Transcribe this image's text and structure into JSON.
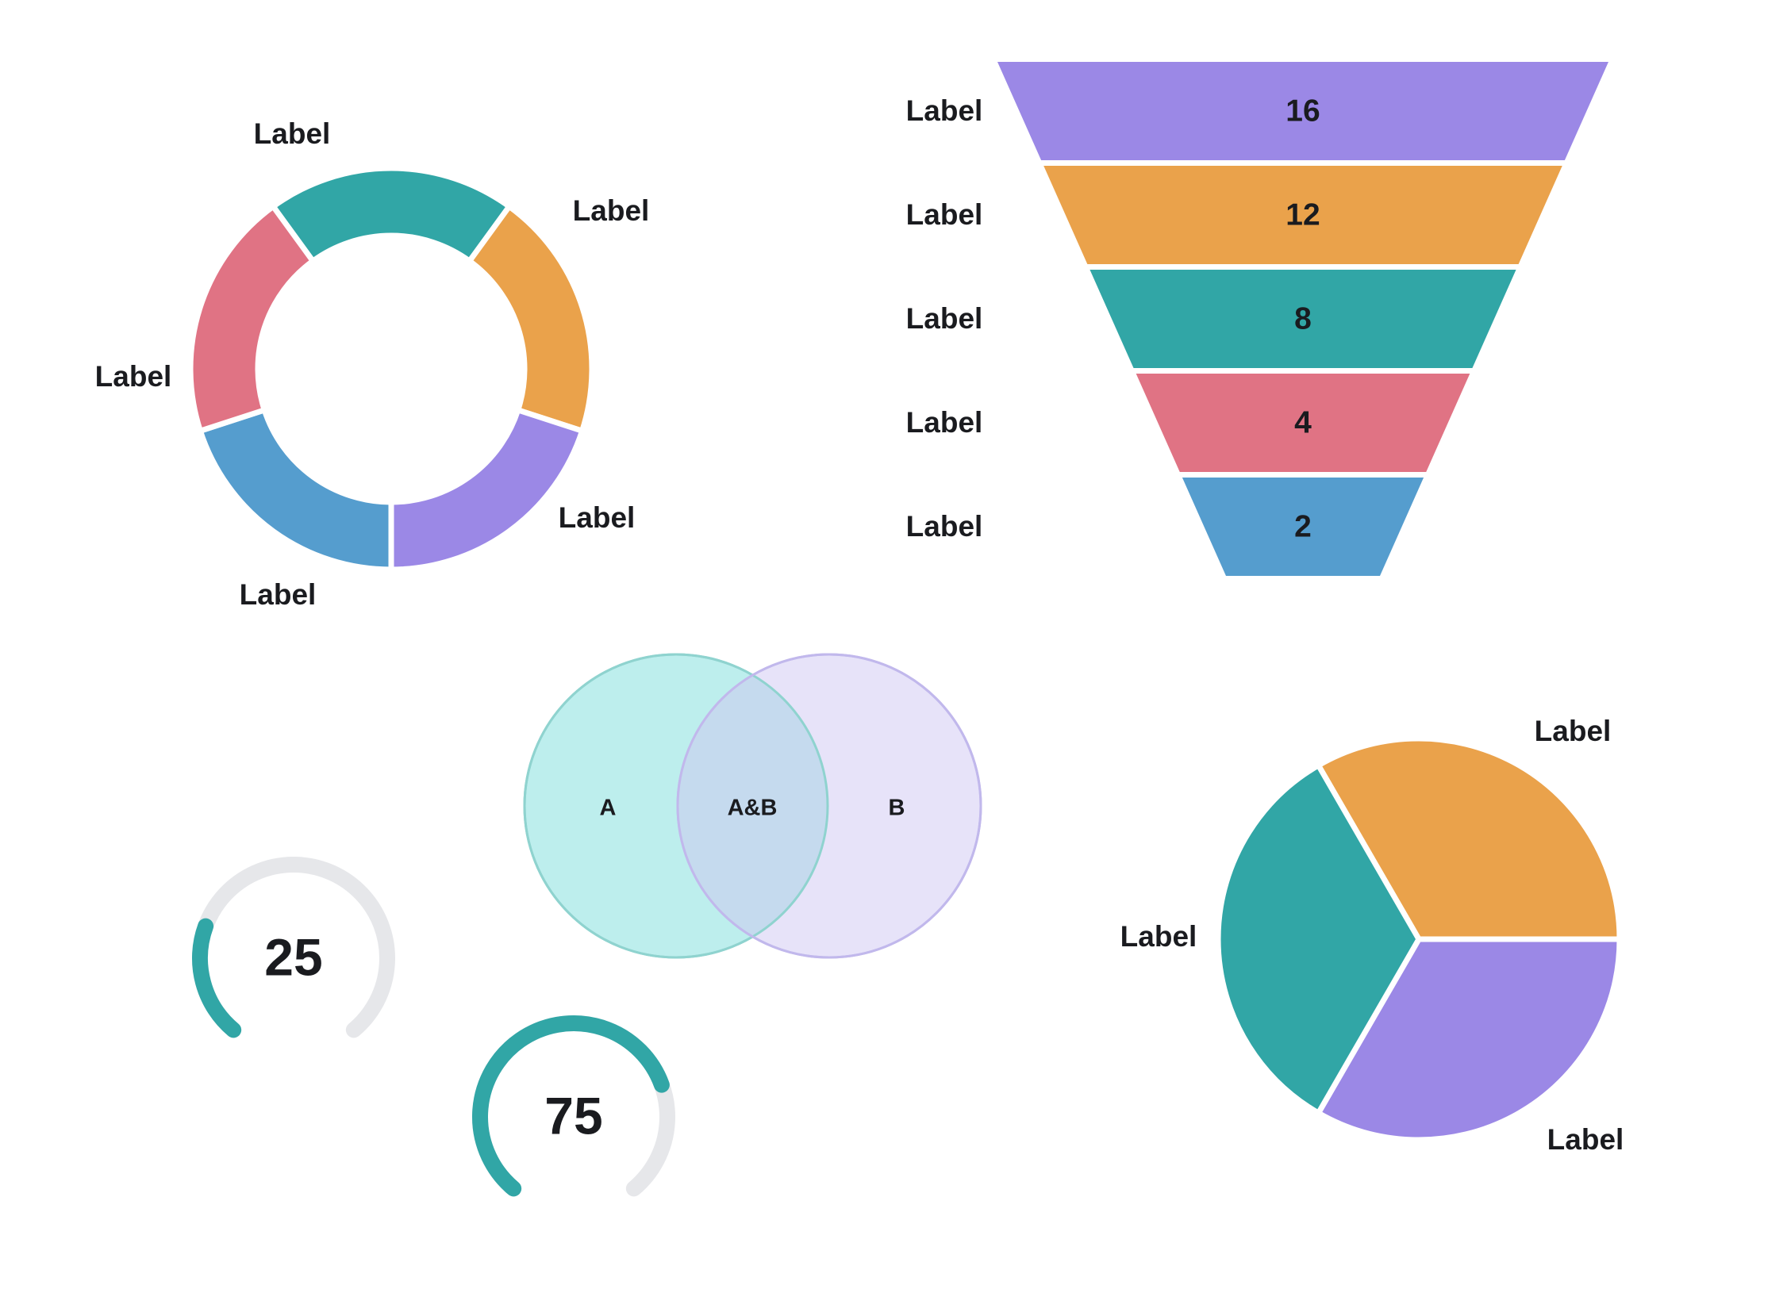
{
  "chart_data": [
    {
      "type": "donut",
      "segments": [
        {
          "label": "Label",
          "value": 1,
          "color": "#31a6a6"
        },
        {
          "label": "Label",
          "value": 1,
          "color": "#eaa24b"
        },
        {
          "label": "Label",
          "value": 1,
          "color": "#9b88e6"
        },
        {
          "label": "Label",
          "value": 1,
          "color": "#559dce"
        },
        {
          "label": "Label",
          "value": 1,
          "color": "#e07384"
        }
      ]
    },
    {
      "type": "funnel",
      "stages": [
        {
          "label": "Label",
          "value": 16,
          "color": "#9b88e6"
        },
        {
          "label": "Label",
          "value": 12,
          "color": "#eaa24b"
        },
        {
          "label": "Label",
          "value": 8,
          "color": "#31a6a6"
        },
        {
          "label": "Label",
          "value": 4,
          "color": "#e07384"
        },
        {
          "label": "Label",
          "value": 2,
          "color": "#559dce"
        }
      ]
    },
    {
      "type": "venn",
      "sets": [
        {
          "label": "A",
          "fill": "#bdeeed",
          "stroke": "#8fd3cf"
        },
        {
          "label": "B",
          "fill": "#e7e3f9",
          "stroke": "#c1b8ec"
        }
      ],
      "intersection": {
        "label": "A&B",
        "fill": "#c5daee"
      }
    },
    {
      "type": "gauge",
      "value": 25,
      "max": 100,
      "display": "25",
      "color": "#31a6a6",
      "track_color": "#e6e7ea"
    },
    {
      "type": "gauge",
      "value": 75,
      "max": 100,
      "display": "75",
      "color": "#31a6a6",
      "track_color": "#e6e7ea"
    },
    {
      "type": "pie",
      "slices": [
        {
          "label": "Label",
          "value": 1,
          "color": "#eaa24b"
        },
        {
          "label": "Label",
          "value": 1,
          "color": "#9b88e6"
        },
        {
          "label": "Label",
          "value": 1,
          "color": "#31a6a6"
        }
      ]
    }
  ]
}
